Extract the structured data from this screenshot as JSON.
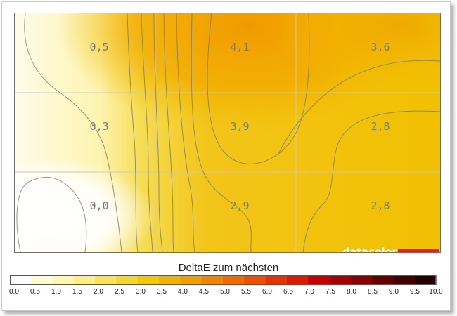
{
  "chart_data": {
    "type": "heatmap",
    "title": "DeltaE zum nächsten",
    "rows": 3,
    "cols": 3,
    "values": [
      [
        "0,5",
        "4,1",
        "3,6"
      ],
      [
        "0,3",
        "3,9",
        "2,8"
      ],
      [
        "0,0",
        "2,9",
        "2,8"
      ]
    ],
    "numeric_values": [
      [
        0.5,
        4.1,
        3.6
      ],
      [
        0.3,
        3.9,
        2.8
      ],
      [
        0.0,
        2.9,
        2.8
      ]
    ],
    "colorbar": {
      "min": 0.0,
      "max": 10.0,
      "step": 0.5,
      "tick_labels": [
        "0.0",
        "0.5",
        "1.0",
        "1.5",
        "2.0",
        "2.5",
        "3.0",
        "3.5",
        "4.0",
        "4.5",
        "5.0",
        "5.5",
        "6.0",
        "6.5",
        "7.0",
        "7.5",
        "8.0",
        "8.5",
        "9.0",
        "9.5",
        "10.0"
      ],
      "colors": [
        "#ffffff",
        "#fffbd6",
        "#fff6b0",
        "#fcee8a",
        "#f8e25a",
        "#f4d62c",
        "#f2c800",
        "#f0b400",
        "#f09d00",
        "#f08400",
        "#f06a00",
        "#ee5000",
        "#e63200",
        "#dc1a00",
        "#c80000",
        "#a80000",
        "#880000",
        "#640000",
        "#420000",
        "#220000"
      ]
    },
    "grid": true
  },
  "logo": {
    "text": "datacolor",
    "bar_color": "#e02020"
  }
}
